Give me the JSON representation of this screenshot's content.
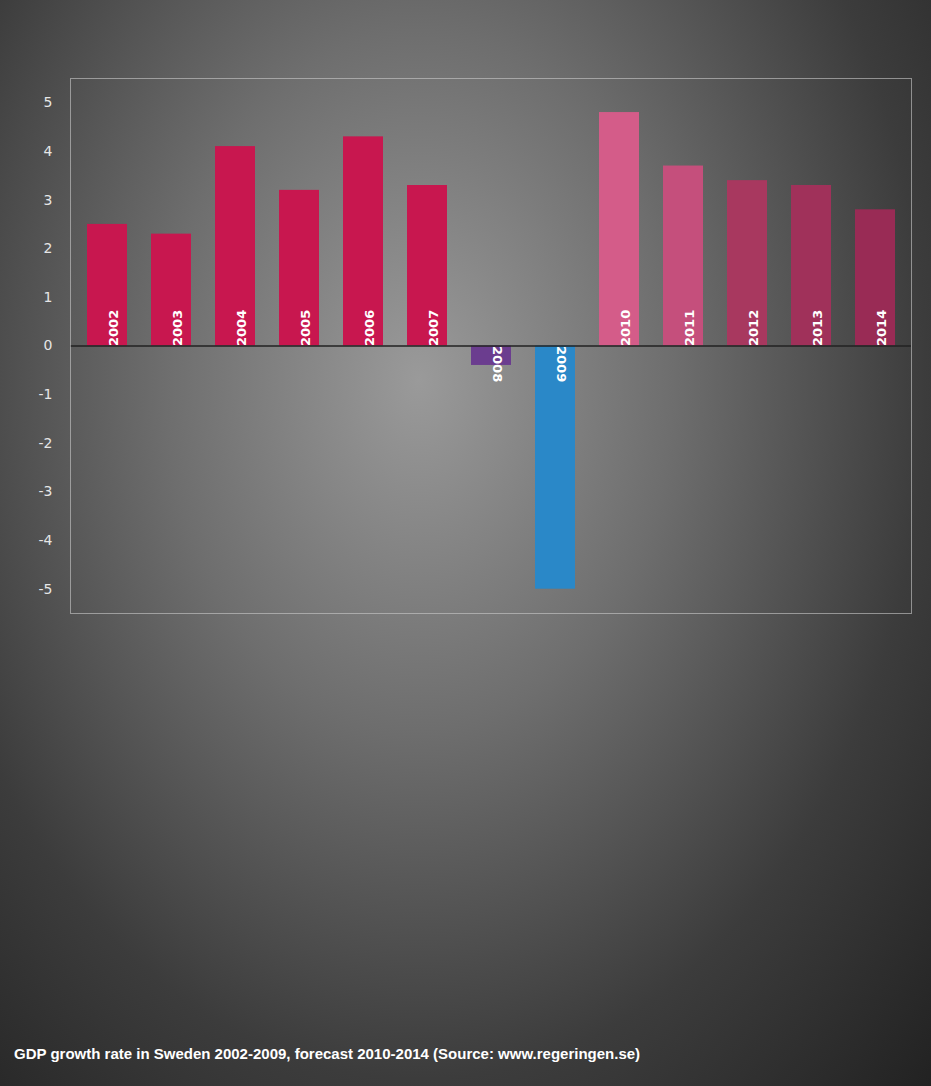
{
  "chart_data": {
    "type": "bar",
    "title": "GDP growth rate in Sweden 2002-2009, forecast 2010-2014 (Source: www.regeringen.se)",
    "categories": [
      "2002",
      "2003",
      "2004",
      "2005",
      "2006",
      "2007",
      "2008",
      "2009",
      "2010",
      "2011",
      "2012",
      "2013",
      "2014"
    ],
    "values": [
      2.5,
      2.3,
      4.1,
      3.2,
      4.3,
      3.3,
      -0.4,
      -5.0,
      4.8,
      3.7,
      3.4,
      3.3,
      2.8
    ],
    "colors": [
      "#c8174f",
      "#c8174f",
      "#c8174f",
      "#c8174f",
      "#c8174f",
      "#c8174f",
      "#6b3d8f",
      "#2a88c8",
      "#d45c89",
      "#c54f7c",
      "#a8385f",
      "#a0315a",
      "#992b55"
    ],
    "ylim": [
      -5.5,
      5.5
    ],
    "yticks": [
      -5,
      -4,
      -3,
      -2,
      -1,
      0,
      1,
      2,
      3,
      4,
      5
    ],
    "grid": false,
    "tick_labels": "y",
    "data_labels": false
  }
}
